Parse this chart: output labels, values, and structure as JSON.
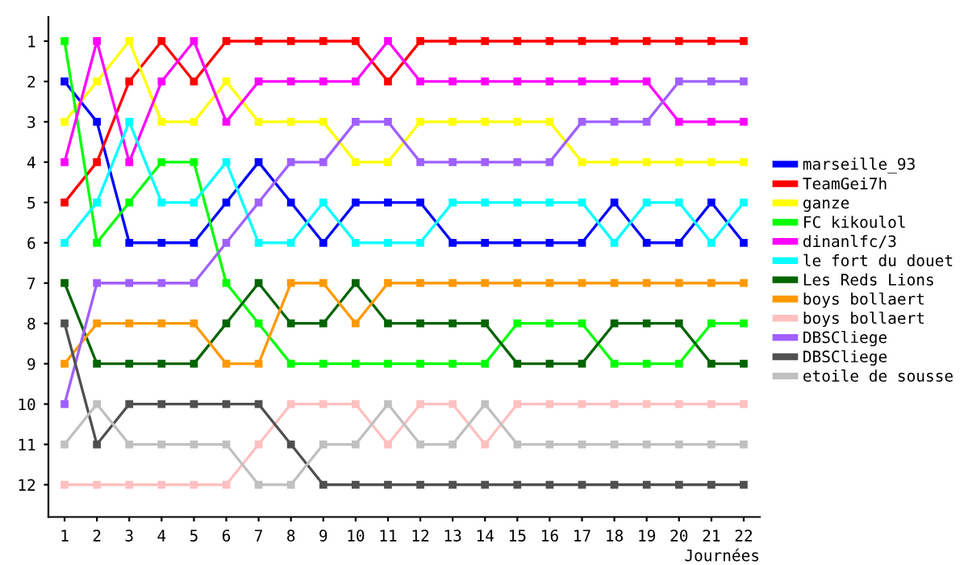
{
  "chart_data": {
    "type": "line",
    "xlabel": "Journées",
    "x": [
      1,
      2,
      3,
      4,
      5,
      6,
      7,
      8,
      9,
      10,
      11,
      12,
      13,
      14,
      15,
      16,
      17,
      18,
      19,
      20,
      21,
      22
    ],
    "xlim": [
      0.5,
      22.5
    ],
    "xticks": [
      1,
      2,
      3,
      4,
      5,
      6,
      7,
      8,
      9,
      10,
      11,
      12,
      13,
      14,
      15,
      16,
      17,
      18,
      19,
      20,
      21,
      22
    ],
    "ylim": [
      12.8,
      0.4
    ],
    "yticks": [
      1,
      2,
      3,
      4,
      5,
      6,
      7,
      8,
      9,
      10,
      11,
      12
    ],
    "grid": false,
    "legend": "right",
    "marker": "square",
    "line_style": "solid",
    "series": [
      {
        "name": "marseille_93",
        "color": "#0000ff",
        "values": [
          2,
          3,
          6,
          6,
          6,
          5,
          4,
          5,
          6,
          5,
          5,
          5,
          6,
          6,
          6,
          6,
          6,
          5,
          6,
          6,
          5,
          6
        ]
      },
      {
        "name": "TeamGei7h",
        "color": "#ff0000",
        "values": [
          5,
          4,
          2,
          1,
          2,
          1,
          1,
          1,
          1,
          1,
          2,
          1,
          1,
          1,
          1,
          1,
          1,
          1,
          1,
          1,
          1,
          1
        ]
      },
      {
        "name": "ganze",
        "color": "#ffff00",
        "values": [
          3,
          2,
          1,
          3,
          3,
          2,
          3,
          3,
          3,
          4,
          4,
          3,
          3,
          3,
          3,
          3,
          4,
          4,
          4,
          4,
          4,
          4
        ]
      },
      {
        "name": "FC kikoulol",
        "color": "#00ff00",
        "values": [
          1,
          6,
          5,
          4,
          4,
          7,
          8,
          9,
          9,
          9,
          9,
          9,
          9,
          9,
          8,
          8,
          8,
          9,
          9,
          9,
          8,
          8
        ]
      },
      {
        "name": "dinanlfc/3",
        "color": "#ff00ff",
        "values": [
          4,
          1,
          4,
          2,
          1,
          3,
          2,
          2,
          2,
          2,
          1,
          2,
          2,
          2,
          2,
          2,
          2,
          2,
          2,
          3,
          3,
          3
        ]
      },
      {
        "name": "le fort du douet",
        "color": "#00ffff",
        "values": [
          6,
          5,
          3,
          5,
          5,
          4,
          6,
          6,
          5,
          6,
          6,
          6,
          5,
          5,
          5,
          5,
          5,
          6,
          5,
          5,
          6,
          5
        ]
      },
      {
        "name": "Les Reds Lions",
        "color": "#006400",
        "values": [
          7,
          9,
          9,
          9,
          9,
          8,
          7,
          8,
          8,
          7,
          8,
          8,
          8,
          8,
          9,
          9,
          9,
          8,
          8,
          8,
          9,
          9
        ]
      },
      {
        "name": "boys bollaert",
        "color": "#ff9900",
        "values": [
          9,
          8,
          8,
          8,
          8,
          9,
          9,
          7,
          7,
          8,
          7,
          7,
          7,
          7,
          7,
          7,
          7,
          7,
          7,
          7,
          7,
          7
        ]
      },
      {
        "name": "boys bollaert",
        "color": "#ffc0c0",
        "values": [
          12,
          12,
          12,
          12,
          12,
          12,
          11,
          10,
          10,
          10,
          11,
          10,
          10,
          11,
          10,
          10,
          10,
          10,
          10,
          10,
          10,
          10
        ]
      },
      {
        "name": "DBSCliege",
        "color": "#a060ff",
        "values": [
          10,
          7,
          7,
          7,
          7,
          6,
          5,
          4,
          4,
          3,
          3,
          4,
          4,
          4,
          4,
          4,
          3,
          3,
          3,
          2,
          2,
          2
        ]
      },
      {
        "name": "DBSCliege",
        "color": "#505050",
        "values": [
          8,
          11,
          10,
          10,
          10,
          10,
          10,
          11,
          12,
          12,
          12,
          12,
          12,
          12,
          12,
          12,
          12,
          12,
          12,
          12,
          12,
          12
        ]
      },
      {
        "name": "etoile de sousse",
        "color": "#c0c0c0",
        "values": [
          11,
          10,
          11,
          11,
          11,
          11,
          12,
          12,
          11,
          11,
          10,
          11,
          11,
          10,
          11,
          11,
          11,
          11,
          11,
          11,
          11,
          11
        ]
      }
    ]
  }
}
